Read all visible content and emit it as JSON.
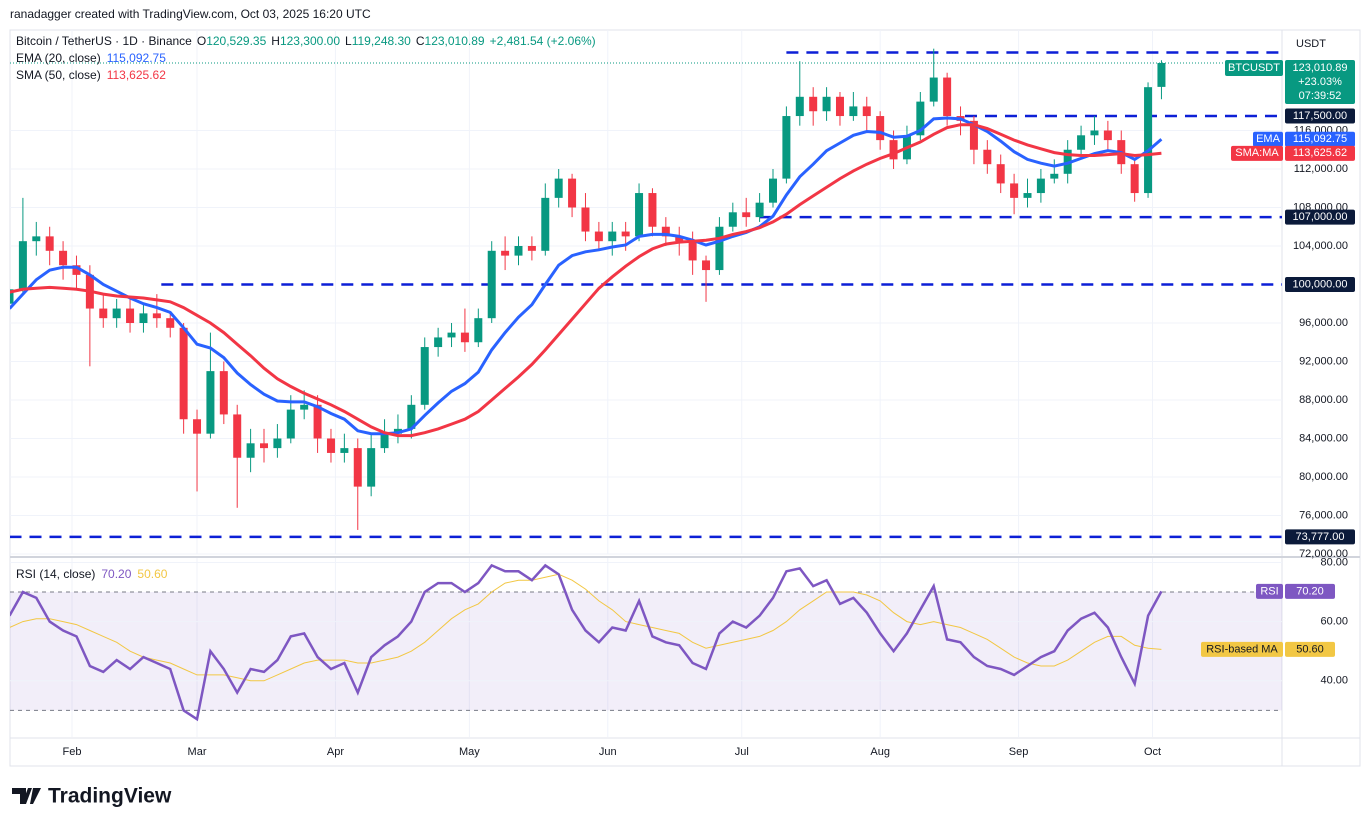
{
  "header": {
    "credit": "ranadagger created with TradingView.com, Oct 03, 2025 16:20 UTC"
  },
  "chart_data": {
    "type": "candlestick",
    "symbol": "Bitcoin / TetherUS · 1D · Binance",
    "ticker": "BTCUSDT",
    "currency": "USDT",
    "ohlc_legend": [
      {
        "key": "O",
        "label": "120,529.35"
      },
      {
        "key": "H",
        "label": "123,300.00"
      },
      {
        "key": "L",
        "label": "119,248.30"
      },
      {
        "key": "C",
        "label": "123,010.89"
      }
    ],
    "change": {
      "value": 2481.54,
      "pct": 2.06,
      "label": "+2,481.54 (+2.06%)"
    },
    "last_price_label": "123,010.89",
    "tag_change": {
      "value": 23.03,
      "label": "+23.03%"
    },
    "countdown": "07:39:52",
    "up_color": "#089981",
    "down_color": "#f23645",
    "x": [
      0,
      3,
      6,
      9,
      12,
      15,
      18,
      21,
      24,
      27,
      30,
      33,
      36,
      39,
      42,
      45,
      48,
      51,
      54,
      57,
      60,
      63,
      66,
      69,
      72,
      75,
      78,
      81,
      84,
      87,
      90,
      93,
      96,
      99,
      102,
      105,
      108,
      111,
      114,
      117,
      120,
      123,
      126,
      129,
      132,
      135,
      138,
      141,
      144,
      147,
      150,
      153,
      156,
      159,
      162,
      165,
      168,
      171,
      174,
      177,
      180,
      183,
      186,
      189,
      192,
      195,
      198,
      201,
      204,
      207,
      210,
      213,
      216,
      219,
      222,
      225,
      228,
      231,
      234,
      237,
      240,
      243,
      246,
      249,
      252,
      255,
      258
    ],
    "candles": [
      [
        98000,
        101000,
        97000,
        99500
      ],
      [
        99500,
        109000,
        99000,
        104500
      ],
      [
        104500,
        106500,
        103000,
        105000
      ],
      [
        105000,
        106000,
        102000,
        103500
      ],
      [
        103500,
        104500,
        100500,
        102000
      ],
      [
        102000,
        103000,
        99500,
        101000
      ],
      [
        101000,
        102000,
        91500,
        97500
      ],
      [
        97500,
        99000,
        95500,
        96500
      ],
      [
        96500,
        98500,
        95500,
        97500
      ],
      [
        97500,
        98500,
        95000,
        96000
      ],
      [
        96000,
        98000,
        95000,
        97000
      ],
      [
        97000,
        99000,
        95500,
        96500
      ],
      [
        96500,
        97000,
        94500,
        95500
      ],
      [
        95500,
        96000,
        84500,
        86000
      ],
      [
        86000,
        87000,
        78500,
        84500
      ],
      [
        84500,
        95000,
        84000,
        91000
      ],
      [
        91000,
        92000,
        85500,
        86500
      ],
      [
        86500,
        87500,
        76800,
        82000
      ],
      [
        82000,
        85000,
        80500,
        83500
      ],
      [
        83500,
        85000,
        81500,
        83000
      ],
      [
        83000,
        85500,
        82000,
        84000
      ],
      [
        84000,
        88500,
        83500,
        87000
      ],
      [
        87000,
        89000,
        86000,
        87500
      ],
      [
        87500,
        88500,
        82500,
        84000
      ],
      [
        84000,
        85000,
        81500,
        82500
      ],
      [
        82500,
        84500,
        81500,
        83000
      ],
      [
        83000,
        84000,
        74500,
        79000
      ],
      [
        79000,
        84500,
        78000,
        83000
      ],
      [
        83000,
        86000,
        82500,
        84500
      ],
      [
        84500,
        86500,
        83500,
        85000
      ],
      [
        85000,
        88500,
        84000,
        87500
      ],
      [
        87500,
        94500,
        87000,
        93500
      ],
      [
        93500,
        95500,
        92500,
        94500
      ],
      [
        94500,
        96000,
        93500,
        95000
      ],
      [
        95000,
        97500,
        93000,
        94000
      ],
      [
        94000,
        97500,
        93500,
        96500
      ],
      [
        96500,
        104500,
        96000,
        103500
      ],
      [
        103500,
        105000,
        101500,
        103000
      ],
      [
        103000,
        105000,
        102000,
        104000
      ],
      [
        104000,
        105000,
        102500,
        103500
      ],
      [
        103500,
        110500,
        103000,
        109000
      ],
      [
        109000,
        112000,
        108000,
        111000
      ],
      [
        111000,
        111500,
        107000,
        108000
      ],
      [
        108000,
        109500,
        104500,
        105500
      ],
      [
        105500,
        106500,
        103500,
        104500
      ],
      [
        104500,
        106500,
        103000,
        105500
      ],
      [
        105500,
        106500,
        103500,
        105000
      ],
      [
        105000,
        110500,
        104500,
        109500
      ],
      [
        109500,
        110000,
        105000,
        106000
      ],
      [
        106000,
        107000,
        104000,
        105000
      ],
      [
        105000,
        106000,
        103000,
        104500
      ],
      [
        104500,
        105500,
        101000,
        102500
      ],
      [
        102500,
        103000,
        98200,
        101500
      ],
      [
        101500,
        107000,
        101000,
        106000
      ],
      [
        106000,
        108500,
        105500,
        107500
      ],
      [
        107500,
        109000,
        106000,
        107000
      ],
      [
        107000,
        109500,
        106500,
        108500
      ],
      [
        108500,
        112000,
        108000,
        111000
      ],
      [
        111000,
        118500,
        110500,
        117500
      ],
      [
        117500,
        123200,
        116500,
        119500
      ],
      [
        119500,
        120500,
        116500,
        118000
      ],
      [
        118000,
        120500,
        117000,
        119500
      ],
      [
        119500,
        120000,
        116500,
        117500
      ],
      [
        117500,
        120000,
        117000,
        118500
      ],
      [
        118500,
        119500,
        116000,
        117500
      ],
      [
        117500,
        118000,
        114000,
        115000
      ],
      [
        115000,
        116000,
        112000,
        113000
      ],
      [
        113000,
        116500,
        112500,
        115500
      ],
      [
        115500,
        120000,
        115000,
        119000
      ],
      [
        119000,
        124500,
        118500,
        121500
      ],
      [
        121500,
        122000,
        116500,
        117500
      ],
      [
        117500,
        118500,
        115500,
        117000
      ],
      [
        117000,
        117500,
        112500,
        114000
      ],
      [
        114000,
        115000,
        111500,
        112500
      ],
      [
        112500,
        113500,
        109500,
        110500
      ],
      [
        110500,
        111500,
        107300,
        109000
      ],
      [
        109000,
        111000,
        108000,
        109500
      ],
      [
        109500,
        112000,
        108500,
        111000
      ],
      [
        111000,
        113000,
        110500,
        111500
      ],
      [
        111500,
        115000,
        110500,
        114000
      ],
      [
        114000,
        116500,
        113500,
        115500
      ],
      [
        115500,
        117500,
        114500,
        116000
      ],
      [
        116000,
        117000,
        114000,
        115000
      ],
      [
        115000,
        116000,
        111500,
        112500
      ],
      [
        112500,
        113000,
        108600,
        109500
      ],
      [
        109500,
        121000,
        109000,
        120500
      ],
      [
        120529.35,
        123300,
        119248.3,
        123010.89
      ]
    ],
    "xlim": [
      0,
      285
    ],
    "xticks": [
      {
        "value": 14,
        "label": "Feb"
      },
      {
        "value": 42,
        "label": "Mar"
      },
      {
        "value": 73,
        "label": "Apr"
      },
      {
        "value": 103,
        "label": "May"
      },
      {
        "value": 134,
        "label": "Jun"
      },
      {
        "value": 164,
        "label": "Jul"
      },
      {
        "value": 195,
        "label": "Aug"
      },
      {
        "value": 226,
        "label": "Sep"
      },
      {
        "value": 256,
        "label": "Oct"
      }
    ],
    "ylim": [
      72000,
      126440
    ],
    "yticks": [
      {
        "value": 72000,
        "label": "72,000.00"
      },
      {
        "value": 76000,
        "label": "76,000.00"
      },
      {
        "value": 80000,
        "label": "80,000.00"
      },
      {
        "value": 84000,
        "label": "84,000.00"
      },
      {
        "value": 88000,
        "label": "88,000.00"
      },
      {
        "value": 92000,
        "label": "92,000.00"
      },
      {
        "value": 96000,
        "label": "96,000.00"
      },
      {
        "value": 104000,
        "label": "104,000.00"
      },
      {
        "value": 108000,
        "label": "108,000.00"
      },
      {
        "value": 112000,
        "label": "112,000.00"
      },
      {
        "value": 116000,
        "label": "116,000.00"
      }
    ],
    "grid": true,
    "levels": [
      {
        "value": 124100,
        "start": 174
      },
      {
        "value": 117500,
        "label": "117,500.00",
        "start": 214
      },
      {
        "value": 107000,
        "label": "107,000.00",
        "start": 168
      },
      {
        "value": 100000,
        "label": "100,000.00",
        "start": 34
      },
      {
        "value": 73777,
        "label": "73,777.00",
        "start": 0
      }
    ],
    "series": [
      {
        "name": "EMA (20, close)",
        "tag": "EMA",
        "color": "#2962ff",
        "last_label": "115,092.75",
        "values": [
          97500,
          99000,
          100500,
          101500,
          101800,
          101800,
          101000,
          100000,
          99300,
          98600,
          98000,
          97600,
          97100,
          95500,
          93800,
          93400,
          92400,
          90800,
          89600,
          88600,
          87900,
          87800,
          87800,
          87300,
          86600,
          86000,
          84800,
          84500,
          84500,
          84600,
          85000,
          86400,
          87700,
          88900,
          89700,
          90900,
          93200,
          95000,
          96600,
          97900,
          100000,
          102000,
          103000,
          103400,
          103600,
          103900,
          104100,
          105000,
          105200,
          105200,
          105000,
          104600,
          104100,
          104500,
          105000,
          105400,
          106000,
          107100,
          109300,
          111200,
          112500,
          113900,
          114700,
          115500,
          115900,
          115800,
          115300,
          115400,
          116000,
          117200,
          117300,
          117200,
          116600,
          115900,
          114900,
          113800,
          113000,
          112600,
          112300,
          112600,
          113100,
          113600,
          113900,
          113700,
          113000,
          113900,
          115092.75
        ]
      },
      {
        "name": "SMA (50, close)",
        "tag": "SMA:MA",
        "color": "#f23645",
        "last_label": "113,625.62",
        "values": [
          99200,
          99500,
          99600,
          99700,
          99600,
          99500,
          99300,
          99000,
          98800,
          98700,
          98600,
          98400,
          98200,
          97600,
          96800,
          96000,
          95000,
          93800,
          92600,
          91300,
          90200,
          89400,
          88700,
          88100,
          87500,
          86800,
          86000,
          85200,
          84600,
          84300,
          84300,
          84600,
          85000,
          85500,
          86000,
          86800,
          88000,
          89200,
          90400,
          91700,
          93200,
          94800,
          96400,
          98000,
          99600,
          100800,
          101900,
          102900,
          103700,
          104200,
          104400,
          104500,
          104600,
          104800,
          105200,
          105500,
          105900,
          106500,
          107300,
          108300,
          109200,
          110100,
          111000,
          111800,
          112500,
          113100,
          113600,
          114200,
          114800,
          115600,
          116300,
          116600,
          116600,
          116200,
          115600,
          115000,
          114500,
          114100,
          113700,
          113500,
          113400,
          113400,
          113500,
          113600,
          113400,
          113500,
          113625.62
        ]
      }
    ],
    "rsi": {
      "name": "RSI (14, close)",
      "tag": "RSI",
      "color": "#7e57c2",
      "last_label": "70.20",
      "values": [
        62,
        70,
        68,
        60,
        57,
        55,
        45,
        43,
        47,
        44,
        48,
        46,
        44,
        30,
        27,
        50,
        44,
        36,
        44,
        43,
        47,
        55,
        56,
        48,
        44,
        46,
        36,
        48,
        52,
        55,
        60,
        70,
        73,
        73,
        70,
        73,
        79,
        77,
        77,
        74,
        79,
        76,
        64,
        57,
        53,
        58,
        57,
        67,
        55,
        53,
        52,
        46,
        44,
        56,
        60,
        58,
        62,
        68,
        77,
        78,
        72,
        74,
        66,
        68,
        63,
        56,
        50,
        56,
        64,
        72,
        54,
        53,
        48,
        45,
        44,
        42,
        45,
        48,
        50,
        57,
        61,
        63,
        58,
        48,
        39,
        62,
        70.2
      ],
      "ma": {
        "name": "RSI-based MA",
        "color": "#f2c744",
        "last_label": "50.60",
        "values": [
          58,
          60,
          61,
          61,
          60,
          59,
          57,
          55,
          53,
          50,
          48,
          47,
          46,
          44,
          42,
          42,
          42,
          41,
          40,
          40,
          42,
          44,
          46,
          47,
          47,
          47,
          46,
          46,
          47,
          48,
          50,
          53,
          57,
          61,
          64,
          66,
          70,
          73,
          74,
          74,
          75,
          76,
          74,
          71,
          67,
          64,
          60,
          59,
          58,
          57,
          56,
          53,
          51,
          52,
          53,
          54,
          55,
          57,
          60,
          64,
          67,
          70,
          70,
          70,
          69,
          67,
          63,
          60,
          59,
          60,
          59,
          58,
          56,
          54,
          51,
          48,
          46,
          45,
          45,
          47,
          50,
          53,
          55,
          55,
          52,
          51,
          50.6
        ]
      },
      "ylim": [
        21,
        81.5
      ],
      "yticks": [
        {
          "value": 80,
          "label": "80.00"
        },
        {
          "value": 60,
          "label": "60.00"
        },
        {
          "value": 40,
          "label": "40.00"
        }
      ],
      "band": [
        30,
        70
      ]
    }
  },
  "footer": {
    "logo": "TradingView"
  }
}
